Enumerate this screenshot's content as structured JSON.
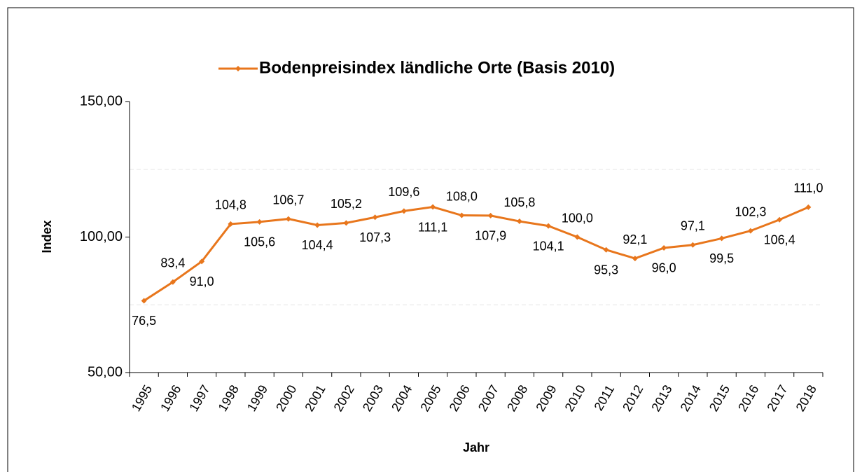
{
  "chart_data": {
    "type": "line",
    "x_label": "Jahr",
    "y_label": "Index",
    "categories": [
      "1995",
      "1996",
      "1997",
      "1998",
      "1999",
      "2000",
      "2001",
      "2002",
      "2003",
      "2004",
      "2005",
      "2006",
      "2007",
      "2008",
      "2009",
      "2010",
      "2011",
      "2012",
      "2013",
      "2014",
      "2015",
      "2016",
      "2017",
      "2018"
    ],
    "series": [
      {
        "name": "Bodenpreisindex ländliche Orte (Basis 2010)",
        "color": "#e8761c",
        "values": [
          76.5,
          83.4,
          91.0,
          104.8,
          105.6,
          106.7,
          104.4,
          105.2,
          107.3,
          109.6,
          111.1,
          108.0,
          107.9,
          105.8,
          104.1,
          100.0,
          95.3,
          92.1,
          96.0,
          97.1,
          99.5,
          102.3,
          106.4,
          111.0
        ],
        "value_labels": [
          "76,5",
          "83,4",
          "91,0",
          "104,8",
          "105,6",
          "106,7",
          "104,4",
          "105,2",
          "107,3",
          "109,6",
          "111,1",
          "108,0",
          "107,9",
          "105,8",
          "104,1",
          "100,0",
          "95,3",
          "92,1",
          "96,0",
          "97,1",
          "99,5",
          "102,3",
          "106,4",
          "111,0"
        ]
      }
    ],
    "ylim": [
      50,
      150
    ],
    "yticks": [
      {
        "value": 50,
        "label": "50,00"
      },
      {
        "value": 100,
        "label": "100,00"
      },
      {
        "value": 150,
        "label": "150,00"
      }
    ],
    "minor_gridlines": [
      75,
      125
    ],
    "legend": "top"
  }
}
